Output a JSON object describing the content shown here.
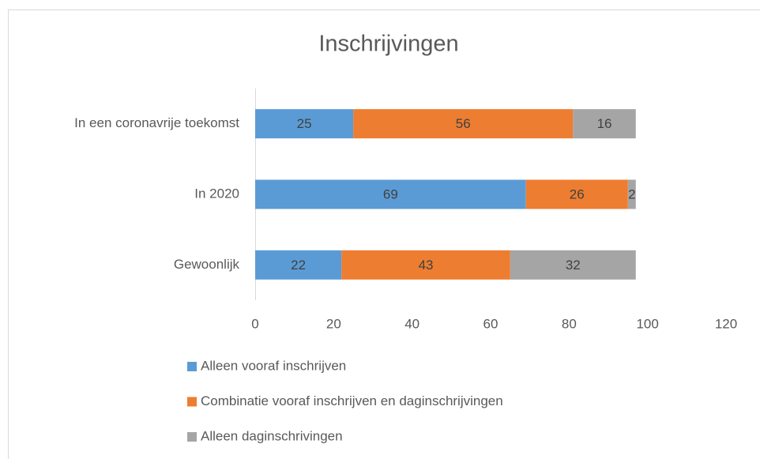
{
  "chart_data": {
    "type": "stacked-barh",
    "title": "Inschrijvingen",
    "categories": [
      "In een coronavrije toekomst",
      "In 2020",
      "Gewoonlijk"
    ],
    "series": [
      {
        "name": "Alleen vooraf inschrijven",
        "color": "#5b9bd5",
        "values": [
          25,
          69,
          22
        ]
      },
      {
        "name": "Combinatie vooraf inschrijven en daginschrijvingen",
        "color": "#ed7d31",
        "values": [
          56,
          26,
          43
        ]
      },
      {
        "name": "Alleen daginschrivingen",
        "color": "#a5a5a5",
        "values": [
          16,
          2,
          32
        ]
      }
    ],
    "xlim": [
      0,
      120
    ],
    "xticks": [
      0,
      20,
      40,
      60,
      80,
      100,
      120
    ],
    "grid": false,
    "legend": "bottom"
  }
}
